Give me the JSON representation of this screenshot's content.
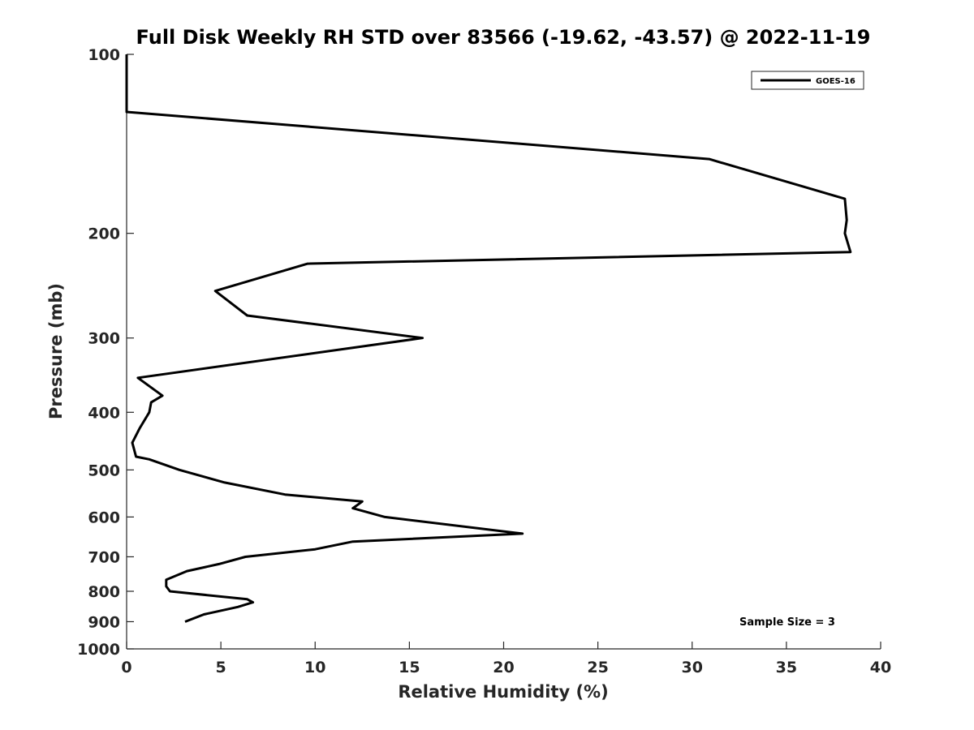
{
  "chart_data": {
    "type": "line",
    "title": "Full Disk Weekly RH STD over 83566 (-19.62, -43.57) @ 2022-11-19",
    "xlabel": "Relative Humidity (%)",
    "ylabel": "Pressure (mb)",
    "xlim": [
      0,
      40
    ],
    "ylim": [
      100,
      1000
    ],
    "y_scale": "log",
    "y_reversed": true,
    "x_ticks": [
      0,
      5,
      10,
      15,
      20,
      25,
      30,
      35,
      40
    ],
    "y_ticks": [
      100,
      200,
      300,
      400,
      500,
      600,
      700,
      800,
      900,
      1000
    ],
    "grid": false,
    "legend": "top-right",
    "series": [
      {
        "name": "GOES-16",
        "color": "#000000",
        "points": [
          [
            0.0,
            100
          ],
          [
            0.0,
            125
          ],
          [
            30.9,
            150
          ],
          [
            38.1,
            175
          ],
          [
            38.2,
            190
          ],
          [
            38.1,
            200
          ],
          [
            38.4,
            215
          ],
          [
            9.6,
            225
          ],
          [
            4.7,
            250
          ],
          [
            6.4,
            275
          ],
          [
            15.7,
            300
          ],
          [
            0.6,
            350
          ],
          [
            1.9,
            375
          ],
          [
            1.3,
            385
          ],
          [
            1.2,
            400
          ],
          [
            0.7,
            425
          ],
          [
            0.3,
            450
          ],
          [
            0.5,
            475
          ],
          [
            1.2,
            480
          ],
          [
            2.8,
            500
          ],
          [
            5.2,
            525
          ],
          [
            8.4,
            550
          ],
          [
            12.5,
            565
          ],
          [
            12.0,
            580
          ],
          [
            13.7,
            600
          ],
          [
            21.0,
            640
          ],
          [
            12.0,
            660
          ],
          [
            10.0,
            680
          ],
          [
            6.3,
            700
          ],
          [
            4.9,
            720
          ],
          [
            3.2,
            740
          ],
          [
            2.1,
            765
          ],
          [
            2.1,
            785
          ],
          [
            2.3,
            800
          ],
          [
            6.4,
            825
          ],
          [
            6.7,
            835
          ],
          [
            5.9,
            850
          ],
          [
            4.1,
            875
          ],
          [
            3.1,
            900
          ]
        ]
      }
    ],
    "annotations": [
      "Sample Size = 3"
    ]
  },
  "legend": {
    "entries": [
      "GOES-16"
    ]
  },
  "annotation": {
    "sample_size": "Sample Size = 3"
  }
}
